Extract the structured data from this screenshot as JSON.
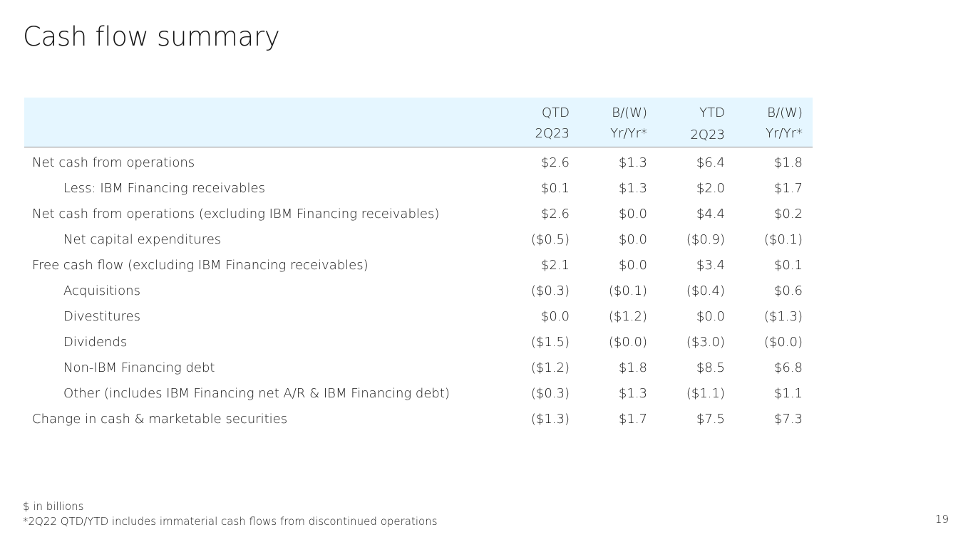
{
  "title": "Cash flow summary",
  "table": {
    "headers": [
      {
        "line1": "QTD",
        "line2": "2Q23"
      },
      {
        "line1": "B/(W)",
        "line2": "Yr/Yr*"
      },
      {
        "line1": "YTD",
        "line2": "2Q23"
      },
      {
        "line1": "B/(W)",
        "line2": "Yr/Yr*"
      }
    ],
    "rows": [
      {
        "label": "Net cash from operations",
        "indent": false,
        "values": [
          "$2.6",
          "$1.3",
          "$6.4",
          "$1.8"
        ]
      },
      {
        "label": "Less: IBM Financing receivables",
        "indent": true,
        "values": [
          "$0.1",
          "$1.3",
          "$2.0",
          "$1.7"
        ]
      },
      {
        "label": "Net cash from operations (excluding IBM Financing receivables)",
        "indent": false,
        "values": [
          "$2.6",
          "$0.0",
          "$4.4",
          "$0.2"
        ]
      },
      {
        "label": "Net capital expenditures",
        "indent": true,
        "values": [
          "($0.5)",
          "$0.0",
          "($0.9)",
          "($0.1)"
        ]
      },
      {
        "label": "Free cash flow (excluding IBM Financing receivables)",
        "indent": false,
        "values": [
          "$2.1",
          "$0.0",
          "$3.4",
          "$0.1"
        ]
      },
      {
        "label": "Acquisitions",
        "indent": true,
        "values": [
          "($0.3)",
          "($0.1)",
          "($0.4)",
          "$0.6"
        ]
      },
      {
        "label": "Divestitures",
        "indent": true,
        "values": [
          "$0.0",
          "($1.2)",
          "$0.0",
          "($1.3)"
        ]
      },
      {
        "label": "Dividends",
        "indent": true,
        "values": [
          "($1.5)",
          "($0.0)",
          "($3.0)",
          "($0.0)"
        ]
      },
      {
        "label": "Non-IBM Financing debt",
        "indent": true,
        "values": [
          "($1.2)",
          "$1.8",
          "$8.5",
          "$6.8"
        ]
      },
      {
        "label": "Other (includes IBM Financing net A/R & IBM Financing debt)",
        "indent": true,
        "values": [
          "($0.3)",
          "$1.3",
          "($1.1)",
          "$1.1"
        ]
      },
      {
        "label": "Change in cash & marketable securities",
        "indent": false,
        "values": [
          "($1.3)",
          "$1.7",
          "$7.5",
          "$7.3"
        ]
      }
    ]
  },
  "footnotes": {
    "units": "$ in billions",
    "note": "*2Q22 QTD/YTD  includes immaterial cash flows from discontinued operations"
  },
  "page_number": "19",
  "colors": {
    "header_background": "#e5f6ff",
    "text": "#161616"
  }
}
